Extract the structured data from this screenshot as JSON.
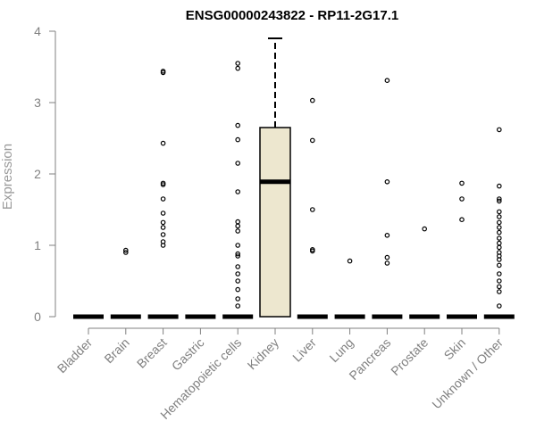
{
  "chart_data": {
    "type": "box",
    "title": "ENSG00000243822 - RP11-2G17.1",
    "xlabel": "",
    "ylabel": "Expression",
    "ylim": [
      0,
      4
    ],
    "yticks": [
      0,
      1,
      2,
      3,
      4
    ],
    "categories": [
      "Bladder",
      "Brain",
      "Breast",
      "Gastric",
      "Hematopoietic cells",
      "Kidney",
      "Liver",
      "Lung",
      "Pancreas",
      "Prostate",
      "Skin",
      "Unknown / Other"
    ],
    "boxes": [
      {
        "category": "Bladder",
        "q1": 0,
        "median": 0,
        "q3": 0,
        "whisker_low": 0,
        "whisker_high": 0,
        "outliers": []
      },
      {
        "category": "Brain",
        "q1": 0,
        "median": 0,
        "q3": 0,
        "whisker_low": 0,
        "whisker_high": 0,
        "outliers": [
          0.9,
          0.93
        ]
      },
      {
        "category": "Breast",
        "q1": 0,
        "median": 0,
        "q3": 0,
        "whisker_low": 0,
        "whisker_high": 0,
        "outliers": [
          1.0,
          1.05,
          1.15,
          1.25,
          1.32,
          1.45,
          1.65,
          1.85,
          1.87,
          2.43,
          3.42,
          3.44
        ]
      },
      {
        "category": "Gastric",
        "q1": 0,
        "median": 0,
        "q3": 0,
        "whisker_low": 0,
        "whisker_high": 0,
        "outliers": []
      },
      {
        "category": "Hematopoietic cells",
        "q1": 0,
        "median": 0,
        "q3": 0,
        "whisker_low": 0,
        "whisker_high": 0,
        "outliers": [
          0.15,
          0.25,
          0.38,
          0.5,
          0.6,
          0.7,
          0.85,
          0.88,
          1.0,
          1.2,
          1.27,
          1.33,
          1.75,
          2.15,
          2.48,
          2.68,
          3.48,
          3.55
        ]
      },
      {
        "category": "Kidney",
        "q1": 0,
        "median": 1.89,
        "q3": 2.65,
        "whisker_low": 0,
        "whisker_high": 3.9,
        "outliers": []
      },
      {
        "category": "Liver",
        "q1": 0,
        "median": 0,
        "q3": 0,
        "whisker_low": 0,
        "whisker_high": 0,
        "outliers": [
          0.92,
          0.94,
          1.5,
          2.47,
          3.03
        ]
      },
      {
        "category": "Lung",
        "q1": 0,
        "median": 0,
        "q3": 0,
        "whisker_low": 0,
        "whisker_high": 0,
        "outliers": [
          0.78
        ]
      },
      {
        "category": "Pancreas",
        "q1": 0,
        "median": 0,
        "q3": 0,
        "whisker_low": 0,
        "whisker_high": 0,
        "outliers": [
          0.75,
          0.83,
          1.14,
          1.89,
          3.31
        ]
      },
      {
        "category": "Prostate",
        "q1": 0,
        "median": 0,
        "q3": 0,
        "whisker_low": 0,
        "whisker_high": 0,
        "outliers": [
          1.23
        ]
      },
      {
        "category": "Skin",
        "q1": 0,
        "median": 0,
        "q3": 0,
        "whisker_low": 0,
        "whisker_high": 0,
        "outliers": [
          1.36,
          1.65,
          1.87
        ]
      },
      {
        "category": "Unknown / Other",
        "q1": 0,
        "median": 0,
        "q3": 0,
        "whisker_low": 0,
        "whisker_high": 0,
        "outliers": [
          0.15,
          0.35,
          0.42,
          0.5,
          0.6,
          0.72,
          0.8,
          0.85,
          0.9,
          0.97,
          1.03,
          1.1,
          1.18,
          1.25,
          1.32,
          1.4,
          1.47,
          1.62,
          1.65,
          1.83,
          2.62
        ]
      }
    ],
    "box_fill": "#EDE7CF",
    "box_stroke": "#000000",
    "axis_text_color": "#808080",
    "grid": false,
    "legend": "none"
  }
}
